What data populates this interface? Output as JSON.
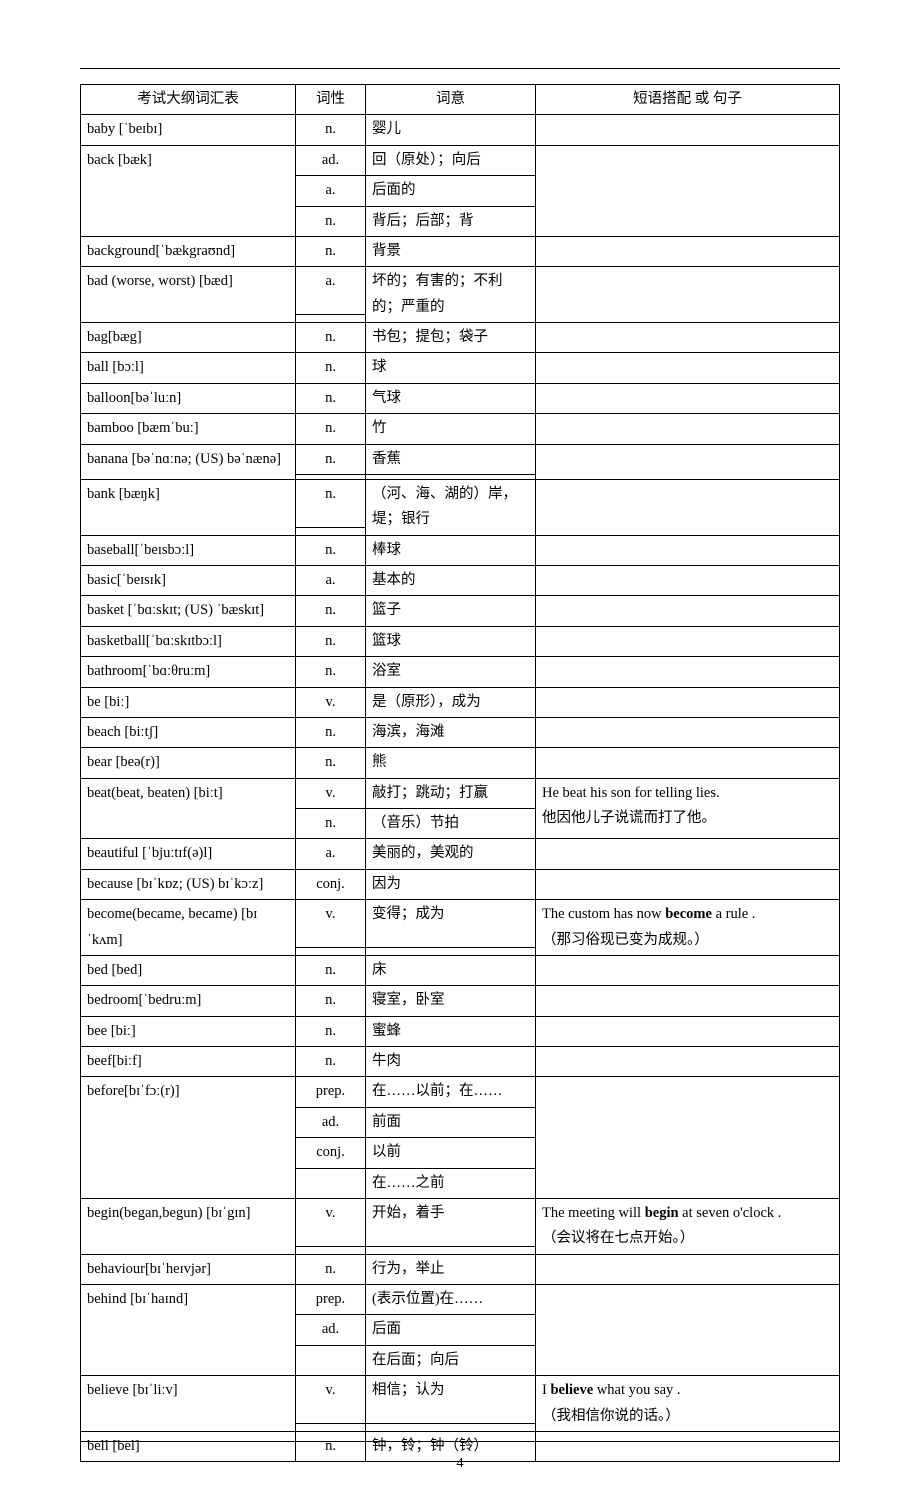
{
  "page_number": "4",
  "headers": {
    "col1": "考试大纲词汇表",
    "col2": "词性",
    "col3": "词意",
    "col4": "短语搭配 或 句子"
  },
  "rows": [
    {
      "word": "baby [ˈbeɪbɪ]",
      "pos": [
        "n."
      ],
      "meaning": [
        "婴儿"
      ],
      "phrase": [
        ""
      ]
    },
    {
      "word": "back [bæk]",
      "pos": [
        "ad.",
        "a.",
        "n."
      ],
      "meaning": [
        "回（原处）；向后",
        "后面的",
        "背后；后部；背"
      ],
      "phrase": [
        "",
        "",
        ""
      ]
    },
    {
      "word": "background[ˈbækgraʊnd]",
      "pos": [
        "n."
      ],
      "meaning": [
        "背景"
      ],
      "phrase": [
        ""
      ]
    },
    {
      "word": "bad (worse, worst) [bæd]",
      "pos": [
        "a.",
        ""
      ],
      "meaning": [
        "坏的；有害的；不利的；严重的"
      ],
      "phrase": [
        "",
        ""
      ],
      "merge_meaning": true
    },
    {
      "word": "bag[bæg]",
      "pos": [
        "n."
      ],
      "meaning": [
        "书包；提包；袋子"
      ],
      "phrase": [
        ""
      ]
    },
    {
      "word": "ball [bɔːl]",
      "pos": [
        "n."
      ],
      "meaning": [
        "球"
      ],
      "phrase": [
        ""
      ]
    },
    {
      "word": "balloon[bəˈluːn]",
      "pos": [
        "n."
      ],
      "meaning": [
        "气球"
      ],
      "phrase": [
        ""
      ]
    },
    {
      "word": "bamboo [bæmˈbuː]",
      "pos": [
        "n."
      ],
      "meaning": [
        "竹"
      ],
      "phrase": [
        ""
      ]
    },
    {
      "word": "banana [bəˈnɑːnə; (US) bəˈnænə]",
      "pos": [
        "n.",
        ""
      ],
      "meaning": [
        "香蕉",
        ""
      ],
      "phrase": [
        "",
        ""
      ]
    },
    {
      "word": "bank [bæŋk]",
      "pos": [
        "n.",
        ""
      ],
      "meaning": [
        "（河、海、湖的）岸，堤；银行"
      ],
      "phrase": [
        "",
        ""
      ],
      "merge_meaning": true
    },
    {
      "word": "baseball[ˈbeɪsbɔːl]",
      "pos": [
        "n."
      ],
      "meaning": [
        "棒球"
      ],
      "phrase": [
        ""
      ]
    },
    {
      "word": "basic[ˈbeɪsɪk]",
      "pos": [
        "a."
      ],
      "meaning": [
        "基本的"
      ],
      "phrase": [
        ""
      ]
    },
    {
      "word": "basket [ˈbɑːskɪt; (US) ˈbæskɪt]",
      "pos": [
        "n."
      ],
      "meaning": [
        "篮子"
      ],
      "phrase": [
        ""
      ]
    },
    {
      "word": "basketball[ˈbɑːskɪtbɔːl]",
      "pos": [
        "n."
      ],
      "meaning": [
        "篮球"
      ],
      "phrase": [
        ""
      ]
    },
    {
      "word": "bathroom[ˈbɑːθruːm]",
      "pos": [
        "n."
      ],
      "meaning": [
        "浴室"
      ],
      "phrase": [
        ""
      ]
    },
    {
      "word": "be [biː]",
      "pos": [
        "v."
      ],
      "meaning": [
        "是（原形），成为"
      ],
      "phrase": [
        ""
      ]
    },
    {
      "word": "beach [biːtʃ]",
      "pos": [
        "n."
      ],
      "meaning": [
        "海滨，海滩"
      ],
      "phrase": [
        ""
      ]
    },
    {
      "word": "bear [beə(r)]",
      "pos": [
        "n."
      ],
      "meaning": [
        "熊"
      ],
      "phrase": [
        ""
      ]
    },
    {
      "word": "beat(beat, beaten) [biːt]",
      "pos": [
        "v.",
        "n."
      ],
      "meaning": [
        "敲打；跳动；打赢",
        "（音乐）节拍"
      ],
      "phrase": [
        "He beat his son for telling lies.",
        "他因他儿子说谎而打了他。"
      ]
    },
    {
      "word": "beautiful [ˈbjuːtɪf(ə)l]",
      "pos": [
        "a."
      ],
      "meaning": [
        "美丽的，美观的"
      ],
      "phrase": [
        ""
      ]
    },
    {
      "word": "because [bɪˈkɒz; (US) bɪˈkɔːz]",
      "pos": [
        "conj."
      ],
      "meaning": [
        "因为"
      ],
      "phrase": [
        ""
      ]
    },
    {
      "word": "become(became, became) [bɪˈkʌm]",
      "pos": [
        "v.",
        ""
      ],
      "meaning": [
        "变得；成为",
        ""
      ],
      "phrase": [
        "The custom has now <b>become</b> a rule .",
        "（那习俗现已变为成规。）"
      ]
    },
    {
      "word": "bed [bed]",
      "pos": [
        "n."
      ],
      "meaning": [
        "床"
      ],
      "phrase": [
        ""
      ]
    },
    {
      "word": "bedroom[ˈbedruːm]",
      "pos": [
        "n."
      ],
      "meaning": [
        "寝室，卧室"
      ],
      "phrase": [
        ""
      ]
    },
    {
      "word": "bee [biː]",
      "pos": [
        "n."
      ],
      "meaning": [
        "蜜蜂"
      ],
      "phrase": [
        ""
      ]
    },
    {
      "word": "beef[biːf]",
      "pos": [
        "n."
      ],
      "meaning": [
        "牛肉"
      ],
      "phrase": [
        ""
      ]
    },
    {
      "word": "before[bɪˈfɔː(r)]",
      "pos": [
        "prep.",
        "ad.",
        "conj.",
        ""
      ],
      "meaning": [
        "在……以前；在……",
        "前面",
        "以前",
        "在……之前"
      ],
      "phrase": [
        "",
        "",
        "",
        ""
      ]
    },
    {
      "word": "begin(began,begun) [bɪˈgɪn]",
      "pos": [
        "v.",
        ""
      ],
      "meaning": [
        "开始，着手",
        ""
      ],
      "phrase": [
        "The meeting will <b>begin</b> at seven o'clock .",
        "（会议将在七点开始。）"
      ]
    },
    {
      "word": "behaviour[bɪˈheɪvjər]",
      "pos": [
        "n."
      ],
      "meaning": [
        "行为，举止"
      ],
      "phrase": [
        ""
      ]
    },
    {
      "word": "behind [bɪˈhaɪnd]",
      "pos": [
        "prep.",
        "ad.",
        ""
      ],
      "meaning": [
        "(表示位置)在……",
        "后面",
        "在后面；向后"
      ],
      "phrase": [
        "",
        "",
        ""
      ]
    },
    {
      "word": "believe [bɪˈliːv]",
      "pos": [
        "v.",
        ""
      ],
      "meaning": [
        "相信；认为",
        ""
      ],
      "phrase": [
        "I <b>believe</b> what you say .",
        "（我相信你说的话。）"
      ]
    },
    {
      "word": "bell [bel]",
      "pos": [
        "n."
      ],
      "meaning": [
        "钟，铃；钟（铃）"
      ],
      "phrase": [
        ""
      ]
    }
  ]
}
